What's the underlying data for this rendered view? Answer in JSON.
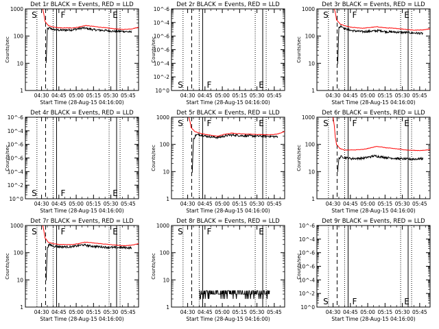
{
  "figure": {
    "title_suffix": " BLACK = Events, RED = LLD",
    "xlabel": "Start Time (28-Aug-15 04:16:00)",
    "ylabel": "Counts/sec",
    "x_tick_labels": [
      "04:30",
      "04:45",
      "05:00",
      "05:15",
      "05:30",
      "05:45"
    ],
    "x_tick_minutes": [
      14,
      29,
      44,
      59,
      74,
      89
    ],
    "x_range_minutes": [
      0,
      98
    ],
    "colors": {
      "events": "#000000",
      "lld": "#ff0000"
    },
    "markers": {
      "S": {
        "label": "S",
        "minute": 9
      },
      "F": {
        "label": "F",
        "minute": 30
      },
      "E": {
        "label": "E",
        "minute": 75
      }
    },
    "vertical_lines": {
      "dotted": [
        10,
        24,
        72.5,
        82
      ],
      "dashed": [
        17.5
      ],
      "solid": [
        27,
        79
      ]
    }
  },
  "chart_data": [
    {
      "type": "line",
      "panel": "Det 1r",
      "title": "Det 1r",
      "ylim": [
        1,
        1000
      ],
      "yscale": "log",
      "y_tick_labels": [
        "1",
        "10",
        "100",
        "1000"
      ],
      "series": [
        {
          "name": "Events",
          "color": "#000000",
          "style": "noisy",
          "points": [
            [
              18,
              10
            ],
            [
              19,
              180
            ],
            [
              21,
              200
            ],
            [
              24,
              175
            ],
            [
              30,
              165
            ],
            [
              40,
              170
            ],
            [
              50,
              200
            ],
            [
              55,
              185
            ],
            [
              60,
              170
            ],
            [
              70,
              160
            ],
            [
              77,
              150
            ],
            [
              85,
              150
            ],
            [
              92,
              140
            ]
          ]
        },
        {
          "name": "LLD",
          "color": "#ff0000",
          "style": "smooth",
          "points": [
            [
              15,
              1000
            ],
            [
              16,
              650
            ],
            [
              17,
              350
            ],
            [
              20,
              240
            ],
            [
              24,
              215
            ],
            [
              30,
              200
            ],
            [
              40,
              200
            ],
            [
              45,
              210
            ],
            [
              52,
              245
            ],
            [
              60,
              225
            ],
            [
              70,
              200
            ],
            [
              78,
              185
            ],
            [
              85,
              175
            ],
            [
              92,
              185
            ],
            [
              98,
              210
            ]
          ]
        }
      ]
    },
    {
      "type": "line",
      "panel": "Det 2r",
      "title": "Det 2r",
      "ylim": [
        1,
        1000000
      ],
      "yscale": "log",
      "y_tick_labels": [
        "10^0",
        "10^-2",
        "10^-4",
        "10^-6",
        "10^-6",
        "10^-4",
        "10^-6"
      ],
      "series": []
    },
    {
      "type": "line",
      "panel": "Det 3r",
      "title": "Det 3r",
      "ylim": [
        1,
        1000
      ],
      "yscale": "log",
      "y_tick_labels": [
        "1",
        "10",
        "100",
        "1000"
      ],
      "series": [
        {
          "name": "Events",
          "color": "#000000",
          "style": "noisy",
          "points": [
            [
              18,
              10
            ],
            [
              19,
              200
            ],
            [
              21,
              240
            ],
            [
              24,
              190
            ],
            [
              30,
              160
            ],
            [
              40,
              145
            ],
            [
              50,
              155
            ],
            [
              55,
              160
            ],
            [
              60,
              145
            ],
            [
              70,
              140
            ],
            [
              77,
              135
            ],
            [
              85,
              130
            ],
            [
              92,
              125
            ]
          ]
        },
        {
          "name": "LLD",
          "color": "#ff0000",
          "style": "smooth",
          "points": [
            [
              15,
              1000
            ],
            [
              16,
              700
            ],
            [
              17,
              400
            ],
            [
              20,
              280
            ],
            [
              24,
              240
            ],
            [
              30,
              210
            ],
            [
              40,
              195
            ],
            [
              45,
              205
            ],
            [
              52,
              220
            ],
            [
              60,
              200
            ],
            [
              70,
              190
            ],
            [
              78,
              175
            ],
            [
              85,
              165
            ],
            [
              92,
              170
            ],
            [
              98,
              185
            ]
          ]
        }
      ]
    },
    {
      "type": "line",
      "panel": "Det 4r",
      "title": "Det 4r",
      "ylim": [
        1,
        1000000
      ],
      "yscale": "log",
      "y_tick_labels": [
        "10^0",
        "10^-2",
        "10^-4",
        "10^-6",
        "10^-6",
        "10^-4",
        "10^-6"
      ],
      "series": []
    },
    {
      "type": "line",
      "panel": "Det 5r",
      "title": "Det 5r",
      "ylim": [
        1,
        1000
      ],
      "yscale": "log",
      "y_tick_labels": [
        "1",
        "10",
        "100",
        "1000"
      ],
      "series": [
        {
          "name": "Events",
          "color": "#000000",
          "style": "noisy",
          "points": [
            [
              18,
              10
            ],
            [
              19,
              150
            ],
            [
              21,
              220
            ],
            [
              24,
              230
            ],
            [
              30,
              200
            ],
            [
              40,
              180
            ],
            [
              50,
              220
            ],
            [
              55,
              220
            ],
            [
              60,
              210
            ],
            [
              70,
              205
            ],
            [
              77,
              200
            ],
            [
              85,
              200
            ],
            [
              92,
              190
            ]
          ]
        },
        {
          "name": "LLD",
          "color": "#ff0000",
          "style": "smooth",
          "points": [
            [
              15,
              1000
            ],
            [
              16,
              700
            ],
            [
              17,
              420
            ],
            [
              20,
              300
            ],
            [
              24,
              260
            ],
            [
              30,
              230
            ],
            [
              40,
              200
            ],
            [
              45,
              230
            ],
            [
              52,
              260
            ],
            [
              60,
              245
            ],
            [
              70,
              235
            ],
            [
              78,
              230
            ],
            [
              85,
              225
            ],
            [
              92,
              240
            ],
            [
              98,
              300
            ]
          ]
        }
      ]
    },
    {
      "type": "line",
      "panel": "Det 6r",
      "title": "Det 6r",
      "ylim": [
        1,
        1000
      ],
      "yscale": "log",
      "y_tick_labels": [
        "1",
        "10",
        "100",
        "1000"
      ],
      "series": [
        {
          "name": "Events",
          "color": "#000000",
          "style": "noisy",
          "points": [
            [
              18,
              10
            ],
            [
              19,
              30
            ],
            [
              21,
              36
            ],
            [
              24,
              33
            ],
            [
              30,
              30
            ],
            [
              40,
              31
            ],
            [
              50,
              38
            ],
            [
              55,
              35
            ],
            [
              60,
              33
            ],
            [
              70,
              30
            ],
            [
              77,
              29
            ],
            [
              85,
              29
            ],
            [
              92,
              30
            ]
          ]
        },
        {
          "name": "LLD",
          "color": "#ff0000",
          "style": "smooth",
          "points": [
            [
              14,
              1000
            ],
            [
              15,
              500
            ],
            [
              16,
              180
            ],
            [
              17,
              100
            ],
            [
              20,
              70
            ],
            [
              24,
              62
            ],
            [
              30,
              62
            ],
            [
              40,
              65
            ],
            [
              45,
              72
            ],
            [
              52,
              85
            ],
            [
              60,
              75
            ],
            [
              70,
              68
            ],
            [
              78,
              62
            ],
            [
              85,
              60
            ],
            [
              92,
              60
            ],
            [
              98,
              65
            ]
          ]
        }
      ]
    },
    {
      "type": "line",
      "panel": "Det 7r",
      "title": "Det 7r",
      "ylim": [
        1,
        1000
      ],
      "yscale": "log",
      "y_tick_labels": [
        "1",
        "10",
        "100",
        "1000"
      ],
      "series": [
        {
          "name": "Events",
          "color": "#000000",
          "style": "noisy",
          "points": [
            [
              18,
              10
            ],
            [
              19,
              160
            ],
            [
              21,
              200
            ],
            [
              24,
              175
            ],
            [
              30,
              165
            ],
            [
              40,
              165
            ],
            [
              50,
              195
            ],
            [
              55,
              180
            ],
            [
              60,
              170
            ],
            [
              70,
              160
            ],
            [
              77,
              155
            ],
            [
              85,
              155
            ],
            [
              92,
              150
            ]
          ]
        },
        {
          "name": "LLD",
          "color": "#ff0000",
          "style": "smooth",
          "points": [
            [
              15,
              1000
            ],
            [
              16,
              650
            ],
            [
              17,
              350
            ],
            [
              20,
              240
            ],
            [
              24,
              215
            ],
            [
              30,
              200
            ],
            [
              40,
              200
            ],
            [
              45,
              210
            ],
            [
              52,
              245
            ],
            [
              60,
              225
            ],
            [
              70,
              205
            ],
            [
              78,
              190
            ],
            [
              85,
              180
            ],
            [
              92,
              190
            ],
            [
              98,
              215
            ]
          ]
        }
      ]
    },
    {
      "type": "line",
      "panel": "Det 8r",
      "title": "Det 8r",
      "ylim": [
        1,
        1000
      ],
      "yscale": "log",
      "y_tick_labels": [
        "1",
        "10",
        "100",
        "1000"
      ],
      "series": [
        {
          "name": "Events",
          "color": "#000000",
          "style": "spiky",
          "points": [
            [
              24,
              2
            ],
            [
              26,
              3
            ],
            [
              30,
              4
            ],
            [
              40,
              3.5
            ],
            [
              50,
              4
            ],
            [
              60,
              3
            ],
            [
              70,
              3.5
            ],
            [
              78,
              3
            ],
            [
              85,
              2
            ]
          ]
        }
      ]
    },
    {
      "type": "line",
      "panel": "Det 9r",
      "title": "Det 9r",
      "ylim": [
        1,
        1000000
      ],
      "yscale": "log",
      "y_tick_labels": [
        "10^0",
        "10^-2",
        "10^-4",
        "10^-6",
        "10^-6",
        "10^-4",
        "10^-6"
      ],
      "series": []
    }
  ]
}
